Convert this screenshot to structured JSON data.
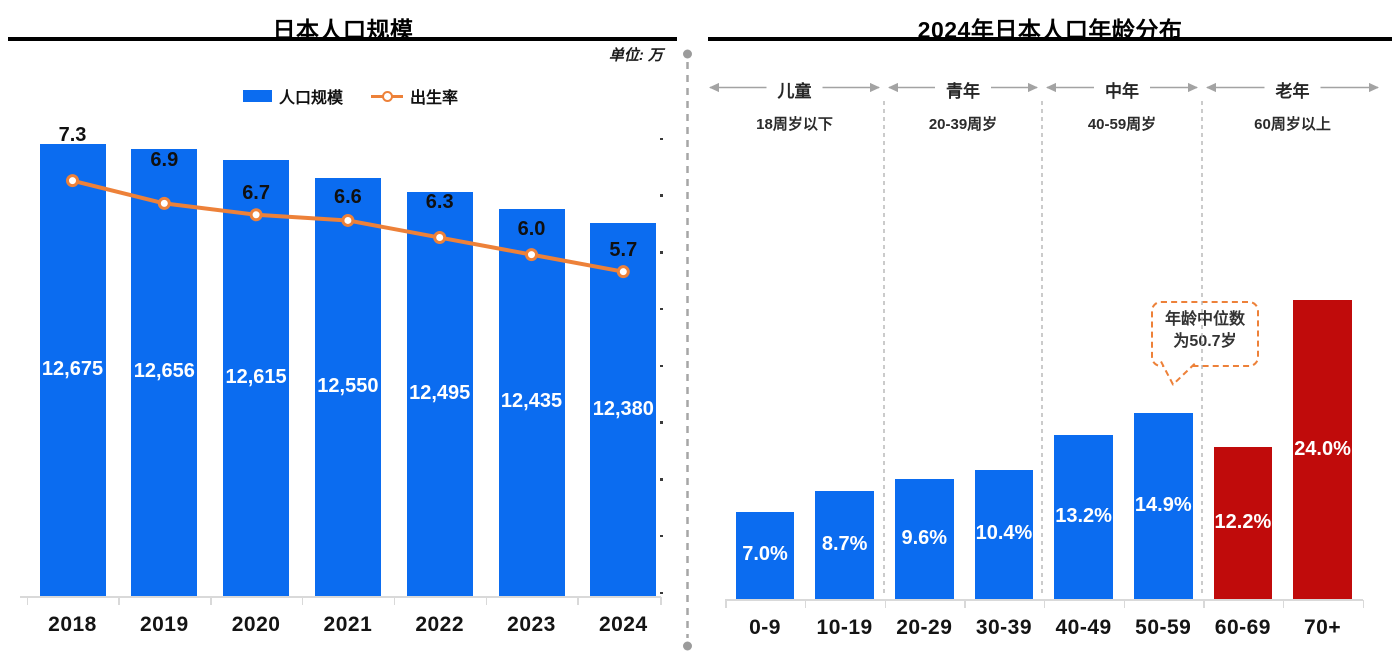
{
  "colors": {
    "bar_blue": "#0B6CF0",
    "bar_red": "#C00B0B",
    "line_orange": "#ED8139",
    "axis_gray": "#D9D9D9",
    "divider_gray": "#A6A6A6",
    "arrow_gray": "#A3A3A3",
    "dashed_sep_gray": "#B5B5B5"
  },
  "chart_data": [
    {
      "type": "bar",
      "title": "日本人口规模",
      "unit_label": "单位: 万",
      "categories": [
        "2018",
        "2019",
        "2020",
        "2021",
        "2022",
        "2023",
        "2024"
      ],
      "series": [
        {
          "name": "人口规模",
          "type": "bar",
          "values": [
            12675,
            12656,
            12615,
            12550,
            12495,
            12435,
            12380
          ],
          "labels": [
            "12,675",
            "12,656",
            "12,615",
            "12,550",
            "12,495",
            "12,435",
            "12,380"
          ],
          "axis_range": [
            11000,
            12700
          ]
        },
        {
          "name": "出生率",
          "type": "line",
          "values": [
            7.3,
            6.9,
            6.7,
            6.6,
            6.3,
            6.0,
            5.7
          ],
          "labels": [
            "7.3",
            "6.9",
            "6.7",
            "6.6",
            "6.3",
            "6.0",
            "5.7"
          ],
          "axis_range": [
            0,
            8
          ]
        }
      ],
      "legend_position": "top",
      "grid": false
    },
    {
      "type": "bar",
      "title": "2024年日本人口年龄分布",
      "categories": [
        "0-9",
        "10-19",
        "20-29",
        "30-39",
        "40-49",
        "50-59",
        "60-69",
        "70+"
      ],
      "values": [
        7.0,
        8.7,
        9.6,
        10.4,
        13.2,
        14.9,
        12.2,
        24.0
      ],
      "labels": [
        "7.0%",
        "8.7%",
        "9.6%",
        "10.4%",
        "13.2%",
        "14.9%",
        "12.2%",
        "24.0%"
      ],
      "bar_palette": [
        "#0B6CF0",
        "#0B6CF0",
        "#0B6CF0",
        "#0B6CF0",
        "#0B6CF0",
        "#0B6CF0",
        "#C00B0B",
        "#C00B0B"
      ],
      "ylim": [
        0,
        36
      ],
      "grid": false,
      "groups": [
        {
          "label": "儿童",
          "range": "18周岁以下",
          "categories": [
            "0-9",
            "10-19"
          ]
        },
        {
          "label": "青年",
          "range": "20-39周岁",
          "categories": [
            "20-29",
            "30-39"
          ]
        },
        {
          "label": "中年",
          "range": "40-59周岁",
          "categories": [
            "40-49",
            "50-59"
          ]
        },
        {
          "label": "老年",
          "range": "60周岁以上",
          "categories": [
            "60-69",
            "70+"
          ]
        }
      ],
      "annotation": {
        "line1": "年龄中位数",
        "line2": "为50.7岁",
        "text": "年龄中位数为50.7岁"
      }
    }
  ]
}
